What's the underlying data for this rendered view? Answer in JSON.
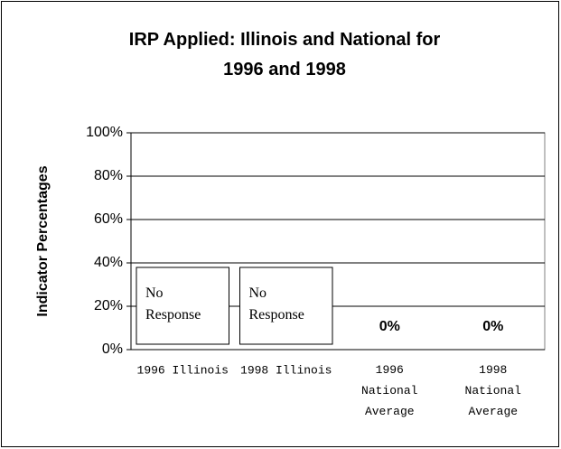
{
  "chart_data": {
    "type": "bar",
    "title": "IRP Applied: Illinois and National for\n1996 and 1998",
    "ylabel": "Indicator Percentages",
    "categories": [
      "1996 Illinois",
      "1998 Illinois",
      "1996\nNational\nAverage",
      "1998\nNational\nAverage"
    ],
    "values": [
      null,
      null,
      0,
      0
    ],
    "value_labels": [
      "No\nResponse",
      "No\nResponse",
      "0%",
      "0%"
    ],
    "ylim": [
      0,
      100
    ],
    "yticks": [
      {
        "value": 0,
        "label": "0%"
      },
      {
        "value": 20,
        "label": "20%"
      },
      {
        "value": 40,
        "label": "40%"
      },
      {
        "value": 60,
        "label": "60%"
      },
      {
        "value": 80,
        "label": "80%"
      },
      {
        "value": 100,
        "label": "100%"
      }
    ],
    "grid": true,
    "color": "#ffffff"
  }
}
